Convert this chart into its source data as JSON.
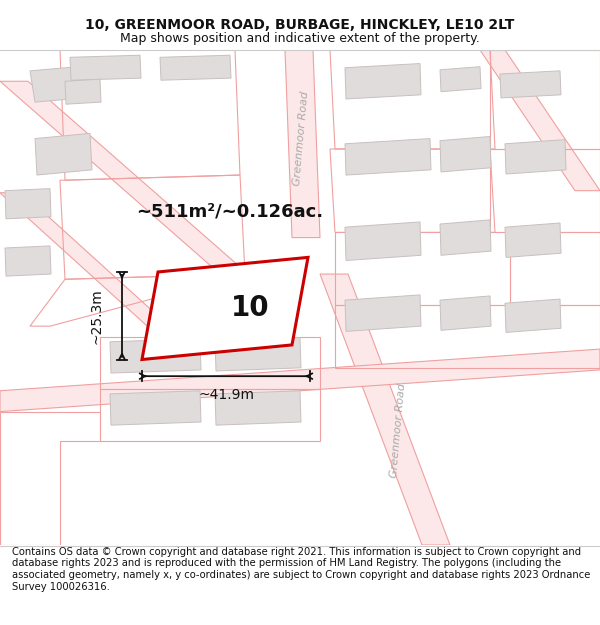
{
  "title_line1": "10, GREENMOOR ROAD, BURBAGE, HINCKLEY, LE10 2LT",
  "title_line2": "Map shows position and indicative extent of the property.",
  "footer_text": "Contains OS data © Crown copyright and database right 2021. This information is subject to Crown copyright and database rights 2023 and is reproduced with the permission of HM Land Registry. The polygons (including the associated geometry, namely x, y co-ordinates) are subject to Crown copyright and database rights 2023 Ordnance Survey 100026316.",
  "map_bg": "#f9f6f6",
  "road_fill": "#fce8e8",
  "road_edge": "#f0a0a0",
  "road_edge_lw": 0.8,
  "building_fill": "#e0dcdc",
  "building_edge": "#c8c0c0",
  "building_lw": 0.7,
  "plot_color": "#cc0000",
  "plot_fill": "#ffffff",
  "plot_lw": 2.2,
  "dim_color": "#111111",
  "area_label": "~511m²/~0.126ac.",
  "width_label": "~41.9m",
  "height_label": "~25.3m",
  "number_label": "10",
  "road_label": "Greenmoor Road",
  "road_text_color": "#aaaaaa",
  "label_color": "#111111",
  "fig_width": 6.0,
  "fig_height": 6.25,
  "dpi": 100,
  "title_fs": 10,
  "subtitle_fs": 9,
  "footer_fs": 7.2,
  "area_fs": 13,
  "dim_fs": 10,
  "num_fs": 20,
  "road_label_fs": 8
}
